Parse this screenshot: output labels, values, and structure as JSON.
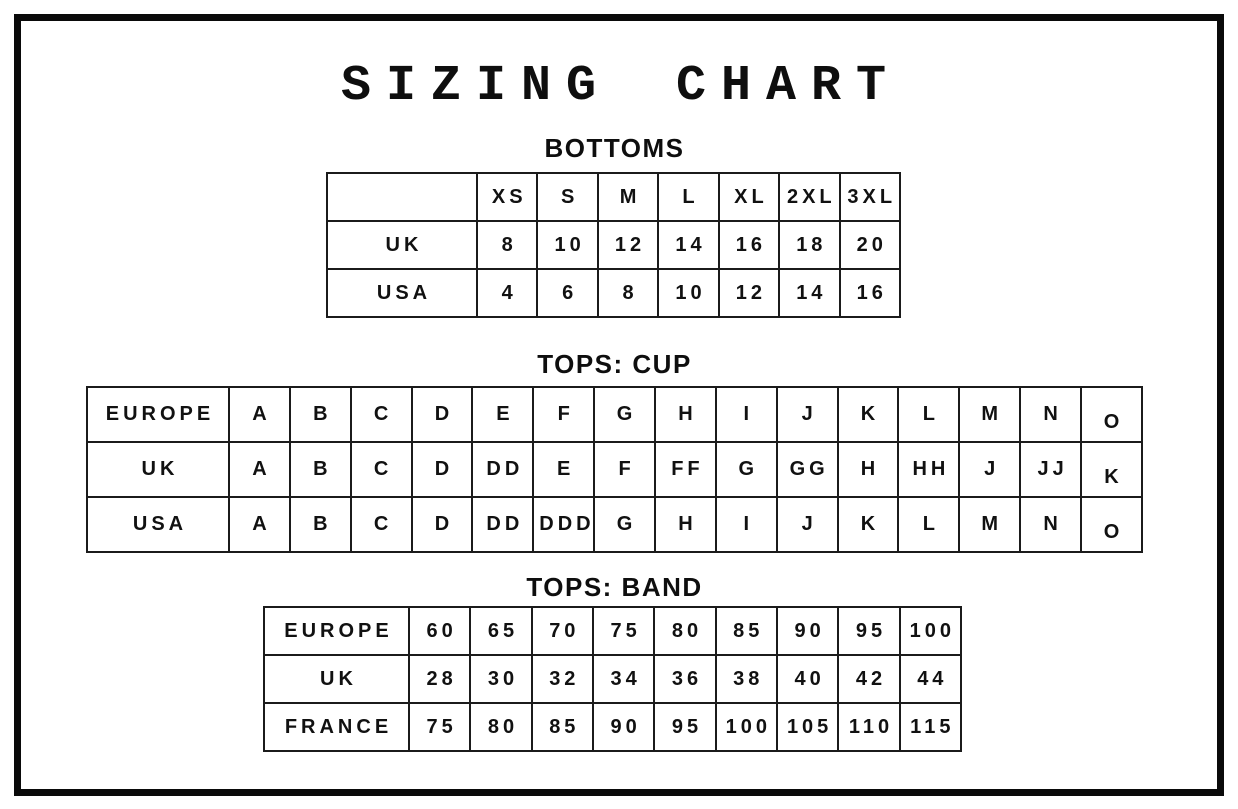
{
  "page": {
    "title": "SIZING CHART"
  },
  "colors": {
    "ink": "#111111",
    "grid": "#1b1b1b",
    "frame": "#0a0a0a",
    "background": "#ffffff"
  },
  "chart_data": [
    {
      "type": "table",
      "title": "BOTTOMS",
      "header": [
        "",
        "XS",
        "S",
        "M",
        "L",
        "XL",
        "2XL",
        "3XL"
      ],
      "rows": [
        {
          "label": "UK",
          "values": [
            "8",
            "10",
            "12",
            "14",
            "16",
            "18",
            "20"
          ]
        },
        {
          "label": "USA",
          "values": [
            "4",
            "6",
            "8",
            "10",
            "12",
            "14",
            "16"
          ]
        }
      ]
    },
    {
      "type": "table",
      "title": "TOPS: CUP",
      "rows": [
        {
          "label": "EUROPE",
          "values": [
            "A",
            "B",
            "C",
            "D",
            "E",
            "F",
            "G",
            "H",
            "I",
            "J",
            "K",
            "L",
            "M",
            "N",
            "O"
          ]
        },
        {
          "label": "UK",
          "values": [
            "A",
            "B",
            "C",
            "D",
            "DD",
            "E",
            "F",
            "FF",
            "G",
            "GG",
            "H",
            "HH",
            "J",
            "JJ",
            "K"
          ]
        },
        {
          "label": "USA",
          "values": [
            "A",
            "B",
            "C",
            "D",
            "DD",
            "DDD",
            "G",
            "H",
            "I",
            "J",
            "K",
            "L",
            "M",
            "N",
            "O"
          ]
        }
      ]
    },
    {
      "type": "table",
      "title": "TOPS: BAND",
      "rows": [
        {
          "label": "EUROPE",
          "values": [
            "60",
            "65",
            "70",
            "75",
            "80",
            "85",
            "90",
            "95",
            "100"
          ]
        },
        {
          "label": "UK",
          "values": [
            "28",
            "30",
            "32",
            "34",
            "36",
            "38",
            "40",
            "42",
            "44"
          ]
        },
        {
          "label": "FRANCE",
          "values": [
            "75",
            "80",
            "85",
            "90",
            "95",
            "100",
            "105",
            "110",
            "115"
          ]
        }
      ]
    }
  ]
}
